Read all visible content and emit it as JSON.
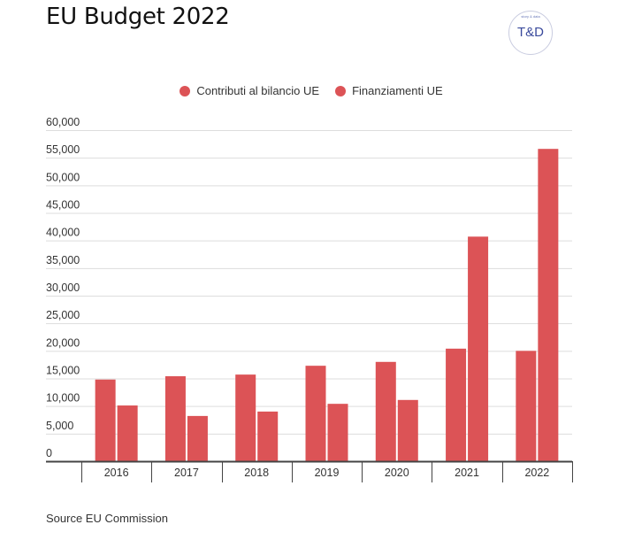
{
  "header": {
    "title": "EU Budget 2022",
    "logo_text": "T&D",
    "logo_subtext": "story & data"
  },
  "footer": {
    "source": "Source EU Commission"
  },
  "colors": {
    "series_a": "#dc5356",
    "series_b": "#dc5356",
    "grid": "#dddddd",
    "axis": "#444444"
  },
  "chart_data": {
    "type": "bar",
    "title": "EU Budget 2022",
    "xlabel": "",
    "ylabel": "",
    "categories": [
      "2016",
      "2017",
      "2018",
      "2019",
      "2020",
      "2021",
      "2022"
    ],
    "series": [
      {
        "name": "Contributi al bilancio UE",
        "values": [
          14800,
          15400,
          15700,
          17300,
          18000,
          20400,
          20000
        ]
      },
      {
        "name": "Finanziamenti UE",
        "values": [
          10100,
          8200,
          9000,
          10400,
          11100,
          40700,
          56600
        ]
      }
    ],
    "ylim": [
      0,
      60000
    ],
    "yticks": [
      0,
      5000,
      10000,
      15000,
      20000,
      25000,
      30000,
      35000,
      40000,
      45000,
      50000,
      55000,
      60000
    ],
    "ytick_labels": [
      "0",
      "5,000",
      "10,000",
      "15,000",
      "20,000",
      "25,000",
      "30,000",
      "35,000",
      "40,000",
      "45,000",
      "50,000",
      "55,000",
      "60,000"
    ],
    "grid": true,
    "legend_position": "top-center"
  }
}
